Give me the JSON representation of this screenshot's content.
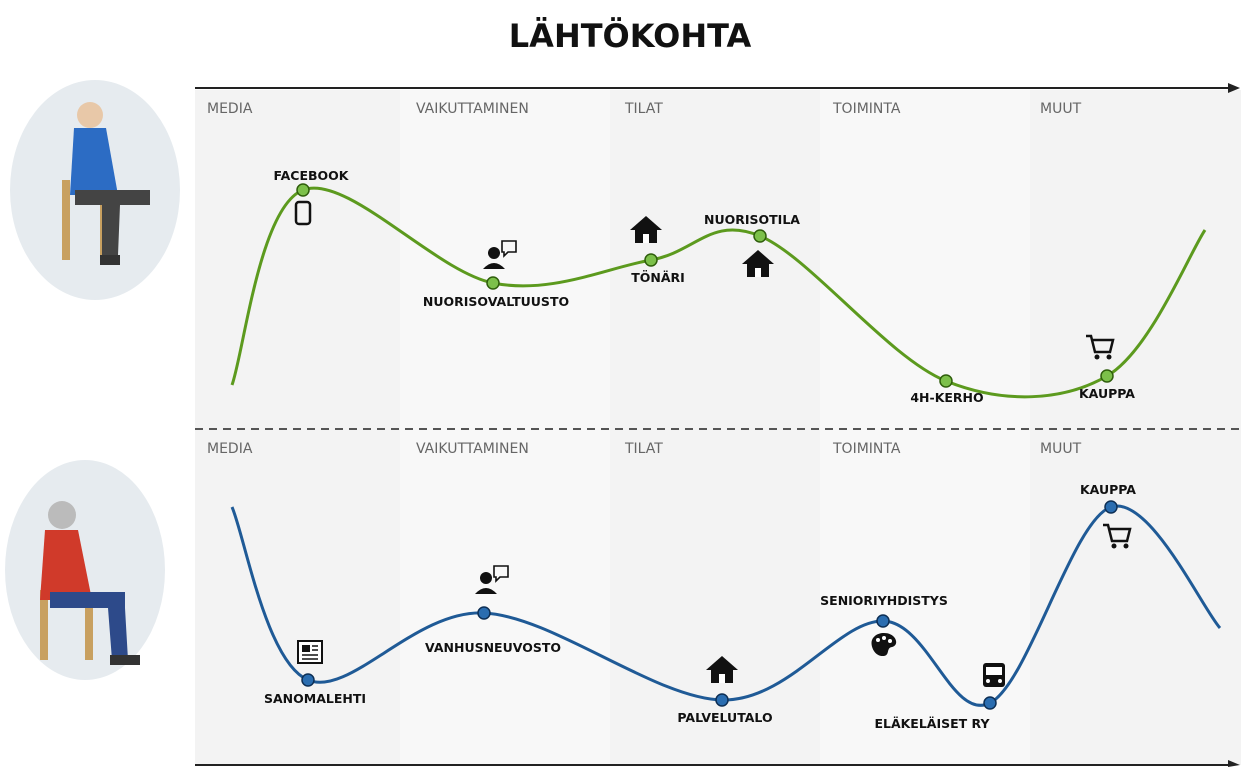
{
  "title": "LÄHTÖKOHTA",
  "rows": [
    {
      "columns": [
        "MEDIA",
        "VAIKUTTAMINEN",
        "TILAT",
        "TOIMINTA",
        "MUUT"
      ],
      "points": [
        {
          "label": "FACEBOOK"
        },
        {
          "label": "NUORISOVALTUUSTO"
        },
        {
          "label": "TÖNÄRI"
        },
        {
          "label": "NUORISOTILA"
        },
        {
          "label": "4H-KERHO"
        },
        {
          "label": "KAUPPA"
        }
      ]
    },
    {
      "columns": [
        "MEDIA",
        "VAIKUTTAMINEN",
        "TILAT",
        "TOIMINTA",
        "MUUT"
      ],
      "points": [
        {
          "label": "SANOMALEHTI"
        },
        {
          "label": "VANHUSNEUVOSTO"
        },
        {
          "label": "PALVELUTALO"
        },
        {
          "label": "SENIORIYHDISTYS"
        },
        {
          "label": "ELÄKELÄISET RY"
        },
        {
          "label": "KAUPPA"
        }
      ]
    }
  ]
}
